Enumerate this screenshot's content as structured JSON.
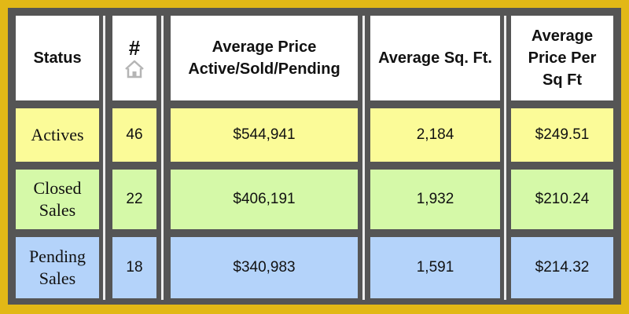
{
  "table": {
    "headers": {
      "status": "Status",
      "count": "#",
      "avg_price_line1": "Average Price",
      "avg_price_line2": "Active/Sold/Pending",
      "avg_sqft": "Average Sq. Ft.",
      "ppsf_line1": "Average",
      "ppsf_line2": "Price Per",
      "ppsf_line3": "Sq Ft"
    },
    "header_icon": "house-icon",
    "rows": [
      {
        "status_line1": "Actives",
        "status_line2": "",
        "count": "46",
        "avg_price": "$544,941",
        "avg_sqft": "2,184",
        "price_per_sqft": "$249.51",
        "color": "#fbfb98"
      },
      {
        "status_line1": "Closed",
        "status_line2": "Sales",
        "count": "22",
        "avg_price": "$406,191",
        "avg_sqft": "1,932",
        "price_per_sqft": "$210.24",
        "color": "#d5f9a8"
      },
      {
        "status_line1": "Pending",
        "status_line2": "Sales",
        "count": "18",
        "avg_price": "$340,983",
        "avg_sqft": "1,591",
        "price_per_sqft": "$214.32",
        "color": "#b4d3fa"
      }
    ]
  },
  "colors": {
    "frame": "#e2b816",
    "grid": "#555555",
    "header_bg": "#ffffff"
  }
}
